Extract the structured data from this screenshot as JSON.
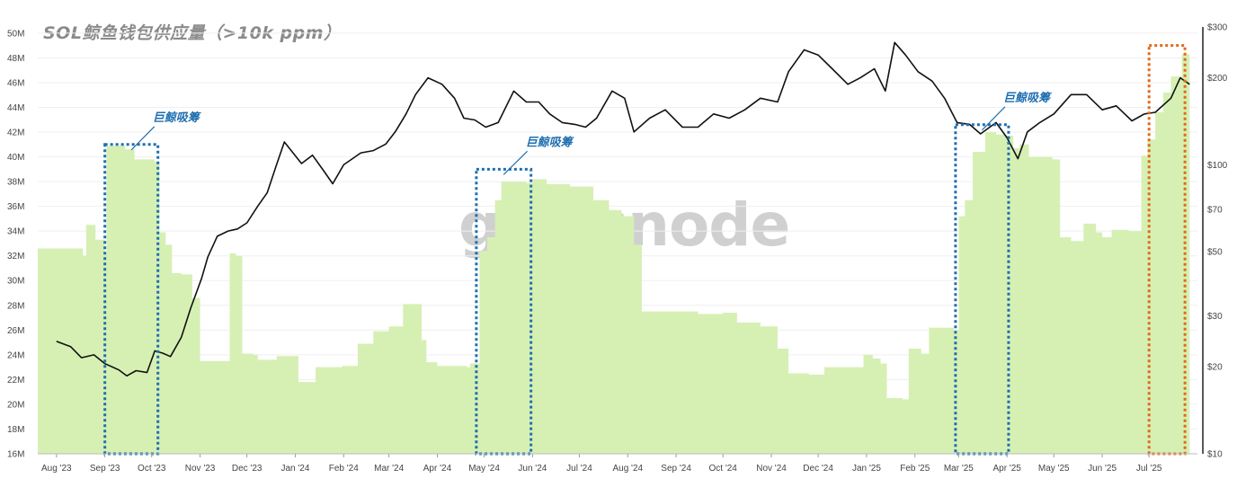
{
  "chart_data": {
    "type": "area",
    "title": "SOL鲸鱼钱包供应量（>10k ppm）",
    "watermark": "glassnode",
    "x_ticks": [
      "Aug '23",
      "Sep '23",
      "Oct '23",
      "Nov '23",
      "Dec '23",
      "Jan '24",
      "Feb '24",
      "Mar '24",
      "Apr '24",
      "May '24",
      "Jun '24",
      "Jul '24",
      "Aug '24",
      "Sep '24",
      "Oct '24",
      "Nov '24",
      "Dec '24",
      "Jan '25",
      "Feb '25",
      "Mar '25",
      "Apr '25",
      "May '25",
      "Jun '25",
      "Jul '25"
    ],
    "y_left_ticks": [
      "16M",
      "18M",
      "20M",
      "22M",
      "24M",
      "26M",
      "28M",
      "30M",
      "32M",
      "34M",
      "36M",
      "38M",
      "40M",
      "42M",
      "44M",
      "46M",
      "48M",
      "50M"
    ],
    "y_left_range": [
      16,
      50.5
    ],
    "y_right_ticks": [
      "$10",
      "$20",
      "$30",
      "$50",
      "$70",
      "$100",
      "$200",
      "$300"
    ],
    "y_right_range": [
      10,
      300
    ],
    "y_right_scale": "log",
    "series": [
      {
        "kind": "area",
        "color": "#d6f0b4",
        "unit": "M",
        "points": [
          [
            "2023-08-01",
            32.6
          ],
          [
            "2023-08-18",
            32.0
          ],
          [
            "2023-08-20",
            34.5
          ],
          [
            "2023-08-26",
            33.3
          ],
          [
            "2023-09-01",
            32.3
          ],
          [
            "2023-09-02",
            40.9
          ],
          [
            "2023-09-14",
            40.6
          ],
          [
            "2023-09-20",
            39.8
          ],
          [
            "2023-10-03",
            39.6
          ],
          [
            "2023-10-06",
            33.9
          ],
          [
            "2023-10-10",
            32.9
          ],
          [
            "2023-10-14",
            30.6
          ],
          [
            "2023-10-20",
            30.5
          ],
          [
            "2023-10-27",
            28.6
          ],
          [
            "2023-11-01",
            23.5
          ],
          [
            "2023-11-18",
            23.5
          ],
          [
            "2023-11-20",
            32.2
          ],
          [
            "2023-11-24",
            32.0
          ],
          [
            "2023-11-28",
            24.1
          ],
          [
            "2023-12-05",
            24.0
          ],
          [
            "2023-12-08",
            23.6
          ],
          [
            "2023-12-20",
            23.9
          ],
          [
            "2024-01-03",
            21.8
          ],
          [
            "2024-01-10",
            21.8
          ],
          [
            "2024-01-14",
            23.0
          ],
          [
            "2024-01-31",
            23.1
          ],
          [
            "2024-02-10",
            24.9
          ],
          [
            "2024-02-20",
            25.9
          ],
          [
            "2024-03-01",
            26.3
          ],
          [
            "2024-03-10",
            28.1
          ],
          [
            "2024-03-22",
            25.2
          ],
          [
            "2024-03-25",
            23.4
          ],
          [
            "2024-04-01",
            23.1
          ],
          [
            "2024-04-20",
            23.0
          ],
          [
            "2024-04-22",
            23.3
          ],
          [
            "2024-04-28",
            32.4
          ],
          [
            "2024-05-03",
            33.5
          ],
          [
            "2024-05-08",
            36.5
          ],
          [
            "2024-05-12",
            38.0
          ],
          [
            "2024-05-22",
            38.0
          ],
          [
            "2024-05-28",
            37.9
          ],
          [
            "2024-06-01",
            38.2
          ],
          [
            "2024-06-10",
            37.8
          ],
          [
            "2024-06-25",
            37.6
          ],
          [
            "2024-07-10",
            36.5
          ],
          [
            "2024-07-20",
            35.7
          ],
          [
            "2024-07-28",
            35.2
          ],
          [
            "2024-08-05",
            32.9
          ],
          [
            "2024-08-10",
            27.5
          ],
          [
            "2024-08-31",
            27.5
          ],
          [
            "2024-09-15",
            27.3
          ],
          [
            "2024-10-01",
            27.4
          ],
          [
            "2024-10-10",
            26.6
          ],
          [
            "2024-10-25",
            26.3
          ],
          [
            "2024-11-05",
            24.5
          ],
          [
            "2024-11-12",
            22.5
          ],
          [
            "2024-11-25",
            22.4
          ],
          [
            "2024-12-05",
            23.0
          ],
          [
            "2024-12-20",
            23.0
          ],
          [
            "2024-12-30",
            24.0
          ],
          [
            "2025-01-05",
            23.7
          ],
          [
            "2025-01-10",
            23.3
          ],
          [
            "2025-01-14",
            20.5
          ],
          [
            "2025-01-24",
            20.4
          ],
          [
            "2025-01-28",
            24.5
          ],
          [
            "2025-02-05",
            24.1
          ],
          [
            "2025-02-10",
            26.2
          ],
          [
            "2025-02-26",
            26.0
          ],
          [
            "2025-03-01",
            35.2
          ],
          [
            "2025-03-05",
            36.5
          ],
          [
            "2025-03-10",
            40.4
          ],
          [
            "2025-03-18",
            42.0
          ],
          [
            "2025-03-25",
            41.8
          ],
          [
            "2025-04-01",
            41.7
          ],
          [
            "2025-04-05",
            40.7
          ],
          [
            "2025-04-09",
            41.0
          ],
          [
            "2025-04-15",
            40.0
          ],
          [
            "2025-04-30",
            39.8
          ],
          [
            "2025-05-05",
            33.5
          ],
          [
            "2025-05-12",
            33.2
          ],
          [
            "2025-05-20",
            34.6
          ],
          [
            "2025-05-28",
            33.9
          ],
          [
            "2025-06-01",
            33.5
          ],
          [
            "2025-06-07",
            34.1
          ],
          [
            "2025-06-18",
            34.0
          ],
          [
            "2025-06-26",
            40.1
          ],
          [
            "2025-06-30",
            41.4
          ],
          [
            "2025-07-05",
            43.6
          ],
          [
            "2025-07-10",
            45.2
          ],
          [
            "2025-07-15",
            46.5
          ],
          [
            "2025-07-22",
            48.3
          ],
          [
            "2025-07-27",
            48.7
          ]
        ]
      },
      {
        "kind": "line",
        "color": "#111111",
        "axis": "right",
        "unit": "$",
        "points": [
          [
            "2023-08-01",
            24.5
          ],
          [
            "2023-08-10",
            23.5
          ],
          [
            "2023-08-17",
            21.5
          ],
          [
            "2023-08-25",
            22.0
          ],
          [
            "2023-09-01",
            20.5
          ],
          [
            "2023-09-10",
            19.5
          ],
          [
            "2023-09-15",
            18.6
          ],
          [
            "2023-09-21",
            19.4
          ],
          [
            "2023-09-28",
            19.1
          ],
          [
            "2023-10-03",
            22.7
          ],
          [
            "2023-10-08",
            22.3
          ],
          [
            "2023-10-13",
            21.7
          ],
          [
            "2023-10-20",
            25.3
          ],
          [
            "2023-10-26",
            31.9
          ],
          [
            "2023-11-02",
            40.5
          ],
          [
            "2023-11-06",
            48.0
          ],
          [
            "2023-11-12",
            56.6
          ],
          [
            "2023-11-19",
            59.0
          ],
          [
            "2023-11-25",
            60.0
          ],
          [
            "2023-12-01",
            63.0
          ],
          [
            "2023-12-08",
            72.0
          ],
          [
            "2023-12-14",
            80.0
          ],
          [
            "2023-12-20",
            100.0
          ],
          [
            "2023-12-25",
            120.0
          ],
          [
            "2024-01-05",
            101.0
          ],
          [
            "2024-01-12",
            108.0
          ],
          [
            "2024-01-20",
            94.0
          ],
          [
            "2024-01-25",
            86.0
          ],
          [
            "2024-02-01",
            100.0
          ],
          [
            "2024-02-12",
            110.0
          ],
          [
            "2024-02-20",
            112.0
          ],
          [
            "2024-02-28",
            118.0
          ],
          [
            "2024-03-05",
            130.0
          ],
          [
            "2024-03-12",
            150.0
          ],
          [
            "2024-03-18",
            175.0
          ],
          [
            "2024-03-26",
            200.0
          ],
          [
            "2024-04-04",
            190.0
          ],
          [
            "2024-04-12",
            170.0
          ],
          [
            "2024-04-18",
            145.0
          ],
          [
            "2024-04-25",
            143.0
          ],
          [
            "2024-05-02",
            135.0
          ],
          [
            "2024-05-10",
            140.0
          ],
          [
            "2024-05-20",
            180.0
          ],
          [
            "2024-05-28",
            165.0
          ],
          [
            "2024-06-05",
            165.0
          ],
          [
            "2024-06-12",
            150.0
          ],
          [
            "2024-06-20",
            140.0
          ],
          [
            "2024-06-28",
            138.0
          ],
          [
            "2024-07-05",
            135.0
          ],
          [
            "2024-07-12",
            145.0
          ],
          [
            "2024-07-22",
            180.0
          ],
          [
            "2024-07-30",
            170.0
          ],
          [
            "2024-08-05",
            130.0
          ],
          [
            "2024-08-15",
            145.0
          ],
          [
            "2024-08-25",
            155.0
          ],
          [
            "2024-09-05",
            135.0
          ],
          [
            "2024-09-15",
            135.0
          ],
          [
            "2024-09-25",
            150.0
          ],
          [
            "2024-10-05",
            145.0
          ],
          [
            "2024-10-15",
            155.0
          ],
          [
            "2024-10-25",
            170.0
          ],
          [
            "2024-11-05",
            165.0
          ],
          [
            "2024-11-12",
            210.0
          ],
          [
            "2024-11-22",
            250.0
          ],
          [
            "2024-12-01",
            240.0
          ],
          [
            "2024-12-10",
            215.0
          ],
          [
            "2024-12-20",
            190.0
          ],
          [
            "2024-12-28",
            200.0
          ],
          [
            "2025-01-06",
            215.0
          ],
          [
            "2025-01-13",
            180.0
          ],
          [
            "2025-01-19",
            265.0
          ],
          [
            "2025-01-26",
            240.0
          ],
          [
            "2025-02-03",
            210.0
          ],
          [
            "2025-02-12",
            195.0
          ],
          [
            "2025-02-20",
            170.0
          ],
          [
            "2025-02-28",
            140.0
          ],
          [
            "2025-03-08",
            138.0
          ],
          [
            "2025-03-15",
            128.0
          ],
          [
            "2025-03-25",
            140.0
          ],
          [
            "2025-04-01",
            124.0
          ],
          [
            "2025-04-08",
            105.0
          ],
          [
            "2025-04-14",
            130.0
          ],
          [
            "2025-04-22",
            140.0
          ],
          [
            "2025-05-01",
            150.0
          ],
          [
            "2025-05-12",
            175.0
          ],
          [
            "2025-05-22",
            175.0
          ],
          [
            "2025-06-01",
            155.0
          ],
          [
            "2025-06-10",
            160.0
          ],
          [
            "2025-06-20",
            142.0
          ],
          [
            "2025-06-28",
            150.0
          ],
          [
            "2025-07-05",
            152.0
          ],
          [
            "2025-07-15",
            170.0
          ],
          [
            "2025-07-21",
            200.0
          ],
          [
            "2025-07-27",
            190.0
          ]
        ]
      }
    ],
    "annotations": [
      {
        "label": "巨鲸吸筹",
        "box_color": "#1f6fb0",
        "x0": "2023-09-01",
        "x1": "2023-10-05",
        "y0": 16.0,
        "y1": 41.0
      },
      {
        "label": "巨鲸吸筹",
        "box_color": "#1f6fb0",
        "x0": "2024-04-26",
        "x1": "2024-05-31",
        "y0": 16.0,
        "y1": 39.0
      },
      {
        "label": "巨鲸吸筹",
        "box_color": "#1f6fb0",
        "x0": "2025-02-27",
        "x1": "2025-04-02",
        "y0": 16.0,
        "y1": 42.6
      },
      {
        "label": "",
        "box_color": "#e06a1a",
        "x0": "2025-07-01",
        "x1": "2025-07-24",
        "y0": 16.0,
        "y1": 49.0
      }
    ],
    "grid": true
  }
}
